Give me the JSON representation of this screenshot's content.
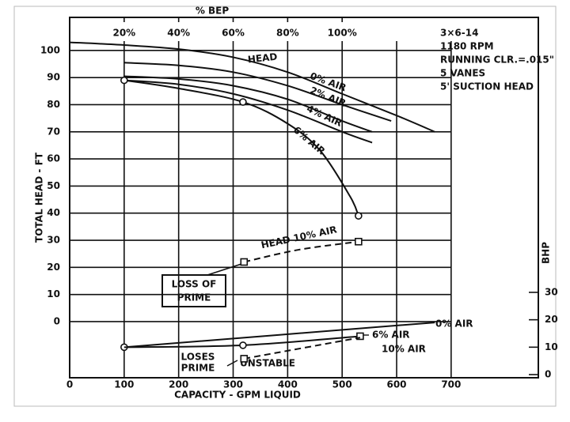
{
  "chart_data": {
    "type": "line",
    "x_label": "CAPACITY - GPM LIQUID",
    "y_label": "TOTAL HEAD - FT",
    "y2_label": "BHP",
    "x2_label": "% BEP",
    "xlim": [
      0,
      860
    ],
    "xticks": [
      0,
      100,
      200,
      300,
      400,
      500,
      600,
      700
    ],
    "x2lim": [
      0,
      172
    ],
    "x2ticks": [
      {
        "value": 20,
        "label": "20%"
      },
      {
        "value": 40,
        "label": "40%"
      },
      {
        "value": 60,
        "label": "60%"
      },
      {
        "value": 80,
        "label": "80%"
      },
      {
        "value": 100,
        "label": "100%"
      }
    ],
    "ylim": [
      -20.7,
      112.2
    ],
    "yticks": [
      0,
      10,
      20,
      30,
      40,
      50,
      60,
      70,
      80,
      90,
      100
    ],
    "y2lim": [
      -1.15,
      130.3
    ],
    "y2ticks": [
      0,
      10,
      20,
      30
    ],
    "grid": true,
    "notes": [
      "3×6-14",
      "1180 RPM",
      "RUNNING CLR.=.015\"",
      "5 VANES",
      "5' SUCTION HEAD"
    ],
    "annotations": [
      "LOSS OF",
      "PRIME",
      "LOSES",
      "PRIME",
      "UNSTABLE"
    ],
    "series": [
      {
        "name": "HEAD",
        "color": "#111",
        "x": [
          0,
          100,
          200,
          300,
          400,
          500,
          600,
          670
        ],
        "values": [
          103,
          102,
          100.5,
          97.5,
          92,
          84,
          76,
          70
        ]
      },
      {
        "name": "0% AIR",
        "color": "#111",
        "x": [
          100,
          200,
          300,
          400,
          500,
          590
        ],
        "values": [
          95.5,
          94.5,
          92,
          87,
          80,
          74
        ]
      },
      {
        "name": "2% AIR",
        "color": "#111",
        "x": [
          100,
          200,
          300,
          400,
          500,
          555
        ],
        "values": [
          90.5,
          89.5,
          87,
          82,
          74,
          70
        ]
      },
      {
        "name": "4% AIR",
        "color": "#111",
        "x": [
          100,
          200,
          300,
          400,
          500,
          555
        ],
        "values": [
          89,
          87.5,
          84,
          78,
          70,
          66
        ]
      },
      {
        "name": "6% AIR",
        "color": "#111",
        "x": [
          100,
          200,
          318,
          400,
          460,
          515,
          530
        ],
        "values": [
          89,
          86,
          81,
          73,
          63,
          46,
          39
        ],
        "markers": [
          "circle",
          null,
          "circle",
          null,
          null,
          null,
          "circle"
        ]
      },
      {
        "name": "HEAD 10% AIR",
        "color": "#111",
        "x": [
          320,
          420,
          530
        ],
        "values": [
          22,
          26.5,
          29.5
        ],
        "dash": true,
        "markers": [
          "square",
          null,
          "square"
        ]
      },
      {
        "name": "0% AIR",
        "color": "#111",
        "axis": "y2",
        "x": [
          100,
          670
        ],
        "values": [
          10,
          19
        ],
        "markers": [
          "circle",
          null
        ]
      },
      {
        "name": "6% AIR",
        "color": "#111",
        "axis": "y2",
        "x": [
          100,
          318,
          533
        ],
        "values": [
          10,
          10.7,
          14
        ],
        "markers": [
          null,
          "circle",
          "square"
        ]
      },
      {
        "name": "10% AIR",
        "color": "#111",
        "axis": "y2",
        "dash": true,
        "x": [
          320,
          533
        ],
        "values": [
          5.8,
          13.5
        ],
        "markers": [
          "square",
          null
        ]
      }
    ]
  }
}
